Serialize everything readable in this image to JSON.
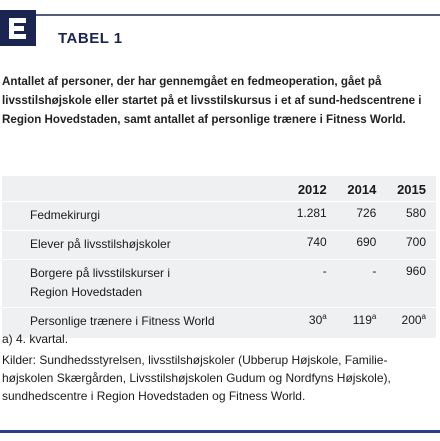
{
  "header": {
    "title": "TABEL 1"
  },
  "caption": "Antallet af personer, der har gennemgået en fedmeoperation, gået på livsstilshøjskole eller startet på et livsstilskursus i et af sund-hedscentrene i Region Hovedstaden, samt antallet af personlige trænere i Fitness World.",
  "table": {
    "columns": [
      "2012",
      "2014",
      "2015"
    ],
    "rows": [
      [
        "Fedmekirurgi",
        "1.281",
        "726",
        "580"
      ],
      [
        "Elever på livsstilshøjskoler",
        "740",
        "690",
        "700"
      ],
      [
        "Borgere på livsstilskurser i\nRegion Hovedstaden",
        "-",
        "-",
        "960"
      ],
      [
        "Personlige trænere i Fitness World",
        {
          "value": "30",
          "sup": "a"
        },
        {
          "value": "119",
          "sup": "a"
        },
        {
          "value": "200",
          "sup": "a"
        }
      ]
    ]
  },
  "note": "a) 4. kvartal.",
  "source": "Kilder: Sundhedsstyrelsen, livsstilshøjskoler (Ubberup Højskole, Familie-højskolen Skærgården, Livsstilshøjskolen Gudum og Nordfyns Højskole), sundhedscentre i Region Hovedstaden og Fitness World."
}
